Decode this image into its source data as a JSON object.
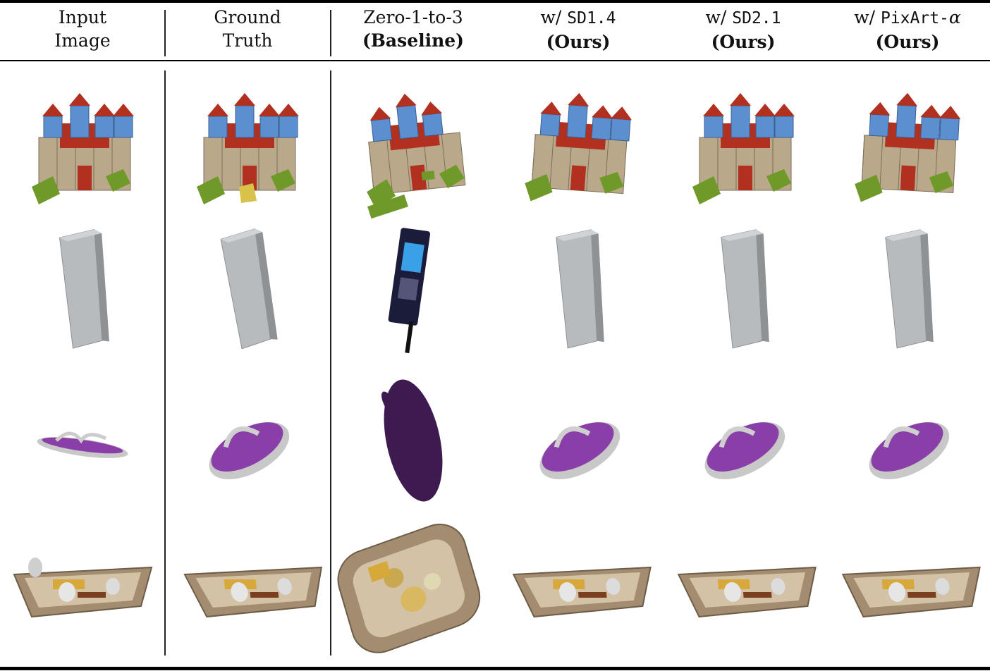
{
  "columns": [
    {
      "line1": "Input",
      "line2": "Image",
      "line2_bold": false
    },
    {
      "line1": "Ground",
      "line2": "Truth",
      "line2_bold": false
    },
    {
      "line1": "Zero-1-to-3",
      "line2": "(Baseline)",
      "line2_bold": true
    },
    {
      "line1_prefix": "w/ ",
      "line1_mono": "SD1.4",
      "line2": "(Ours)",
      "line2_bold": true
    },
    {
      "line1_prefix": "w/ ",
      "line1_mono": "SD2.1",
      "line2": "(Ours)",
      "line2_bold": true
    },
    {
      "line1_prefix": "w/ ",
      "line1_mono": "PixArt-",
      "line1_suffix": "α",
      "line2": "(Ours)",
      "line2_bold": true
    }
  ],
  "rows": [
    "castle",
    "power-bank",
    "sandal",
    "breakfast-tray"
  ],
  "colors": {
    "wood": "#b9a88a",
    "wood_dark": "#7d6e58",
    "roof_red": "#b2301f",
    "tower_blue": "#5c8fd0",
    "grass_green": "#6f9a2a",
    "device_gray": "#b7bbbd",
    "device_edge": "#8e9294",
    "sandal_purple": "#8a3fa8",
    "sandal_dark": "#3d1a4f",
    "sandal_sole": "#c8c8c8",
    "tray": "#a38c70",
    "tray_light": "#d3c2a6",
    "baseline_device": "#1b1b3a",
    "baseline_screen": "#3aa0e8"
  }
}
